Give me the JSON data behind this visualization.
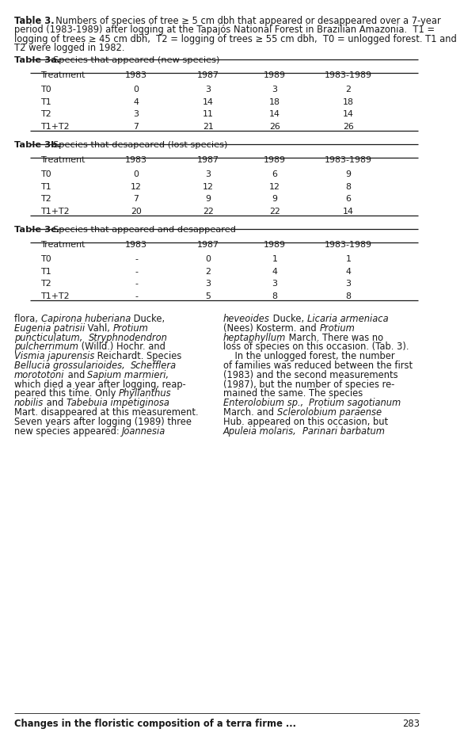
{
  "caption_bold": "Table 3.",
  "caption_normal": "  Numbers of species of tree ≥ 5 cm dbh that appeared or desappeared over a 7-year period (1983-1989) after logging at the Tapajós National Forest in Brazilian Amazonia.  T1 = logging of trees ≥ 45 cm dbh,  T2 = logging of trees ≥ 55 cm dbh,  T0 = unlogged forest. T1 and T2 were logged in 1982.",
  "table3a_bold": "Table 3a.",
  "table3a_normal": "  Species that appeared (new species)",
  "table3a_headers": [
    "Treatment",
    "1983",
    "1987",
    "1989",
    "1983-1989"
  ],
  "table3a_rows": [
    [
      "T0",
      "0",
      "3",
      "3",
      "2"
    ],
    [
      "T1",
      "4",
      "14",
      "18",
      "18"
    ],
    [
      "T2",
      "3",
      "11",
      "14",
      "14"
    ],
    [
      "T1+T2",
      "7",
      "21",
      "26",
      "26"
    ]
  ],
  "table3b_bold": "Table 3b.",
  "table3b_normal": "  Species that desapeared (lost species)",
  "table3b_headers": [
    "Treatment",
    "1983",
    "1987",
    "1989",
    "1983-1989"
  ],
  "table3b_rows": [
    [
      "T0",
      "0",
      "3",
      "6",
      "9"
    ],
    [
      "T1",
      "12",
      "12",
      "12",
      "8"
    ],
    [
      "T2",
      "7",
      "9",
      "9",
      "6"
    ],
    [
      "T1+T2",
      "20",
      "22",
      "22",
      "14"
    ]
  ],
  "table3c_bold": "Table 3c.",
  "table3c_normal": "  Species that appeared and desappeared",
  "table3c_headers": [
    "Treatment",
    "1983",
    "1987",
    "1989",
    "1983-1989"
  ],
  "table3c_rows": [
    [
      "T0",
      "-",
      "0",
      "1",
      "1"
    ],
    [
      "T1",
      "-",
      "2",
      "4",
      "4"
    ],
    [
      "T2",
      "-",
      "3",
      "3",
      "3"
    ],
    [
      "T1+T2",
      "-",
      "5",
      "8",
      "8"
    ]
  ],
  "body_left_lines": [
    [
      [
        "flora, ",
        false
      ],
      [
        "Capirona huberiana",
        true
      ],
      [
        " Ducke,",
        false
      ]
    ],
    [
      [
        "Eugenia patrisii",
        true
      ],
      [
        " Vahl, ",
        false
      ],
      [
        "Protium",
        true
      ]
    ],
    [
      [
        "puncticulatum,",
        true
      ],
      [
        "  ",
        false
      ],
      [
        "Stryphnodendron",
        true
      ]
    ],
    [
      [
        "pulcherrimum",
        true
      ],
      [
        " (Willd.) Hochr. and",
        false
      ]
    ],
    [
      [
        "Vismia japurensis",
        true
      ],
      [
        " Reichardt. Species",
        false
      ]
    ],
    [
      [
        "Bellucia grossularioides,",
        true
      ],
      [
        "  ",
        false
      ],
      [
        "Schefflera",
        true
      ]
    ],
    [
      [
        "morototoni",
        true
      ],
      [
        " and ",
        false
      ],
      [
        "Sapium marmieri,",
        true
      ]
    ],
    [
      [
        "which died a year after logging, reap-",
        false
      ]
    ],
    [
      [
        "peared this time. Only ",
        false
      ],
      [
        "Phyllanthus",
        true
      ]
    ],
    [
      [
        "nobilis",
        true
      ],
      [
        " and ",
        false
      ],
      [
        "Tabebuia impetiginosa",
        true
      ]
    ],
    [
      [
        "Mart. disappeared at this measurement.",
        false
      ]
    ],
    [
      [
        "Seven years after logging (1989) three",
        false
      ]
    ],
    [
      [
        "new species appeared: ",
        false
      ],
      [
        "Joannesia",
        true
      ]
    ]
  ],
  "body_right_lines": [
    [
      [
        "heveoides",
        true
      ],
      [
        " Ducke, ",
        false
      ],
      [
        "Licaria armeniaca",
        true
      ]
    ],
    [
      [
        "(Nees) Kosterm. and ",
        false
      ],
      [
        "Protium",
        true
      ]
    ],
    [
      [
        "heptaphyllum",
        true
      ],
      [
        " March. There was no",
        false
      ]
    ],
    [
      [
        "loss of species on this occasion. (Tab. 3).",
        false
      ]
    ],
    [
      [
        "    In the unlogged forest, the number",
        false
      ]
    ],
    [
      [
        "of families was reduced between the first",
        false
      ]
    ],
    [
      [
        "(1983) and the second measurements",
        false
      ]
    ],
    [
      [
        "(1987), but the number of species re-",
        false
      ]
    ],
    [
      [
        "mained the same. The species",
        false
      ]
    ],
    [
      [
        "Enterolobium sp.,",
        true
      ],
      [
        "  ",
        false
      ],
      [
        "Protium sagotianum",
        true
      ]
    ],
    [
      [
        "March. and ",
        false
      ],
      [
        "Sclerolobium paraense",
        true
      ]
    ],
    [
      [
        "Hub. appeared on this occasion, but",
        false
      ]
    ],
    [
      [
        "Apuleia molaris,",
        true
      ],
      [
        "  ",
        false
      ],
      [
        "Parinari barbatum",
        true
      ]
    ]
  ],
  "footer_bold": "Changes in the floristic composition of a terra firme ...",
  "footer_page": "283",
  "bg_color": "#ffffff",
  "text_color": "#1a1a1a"
}
